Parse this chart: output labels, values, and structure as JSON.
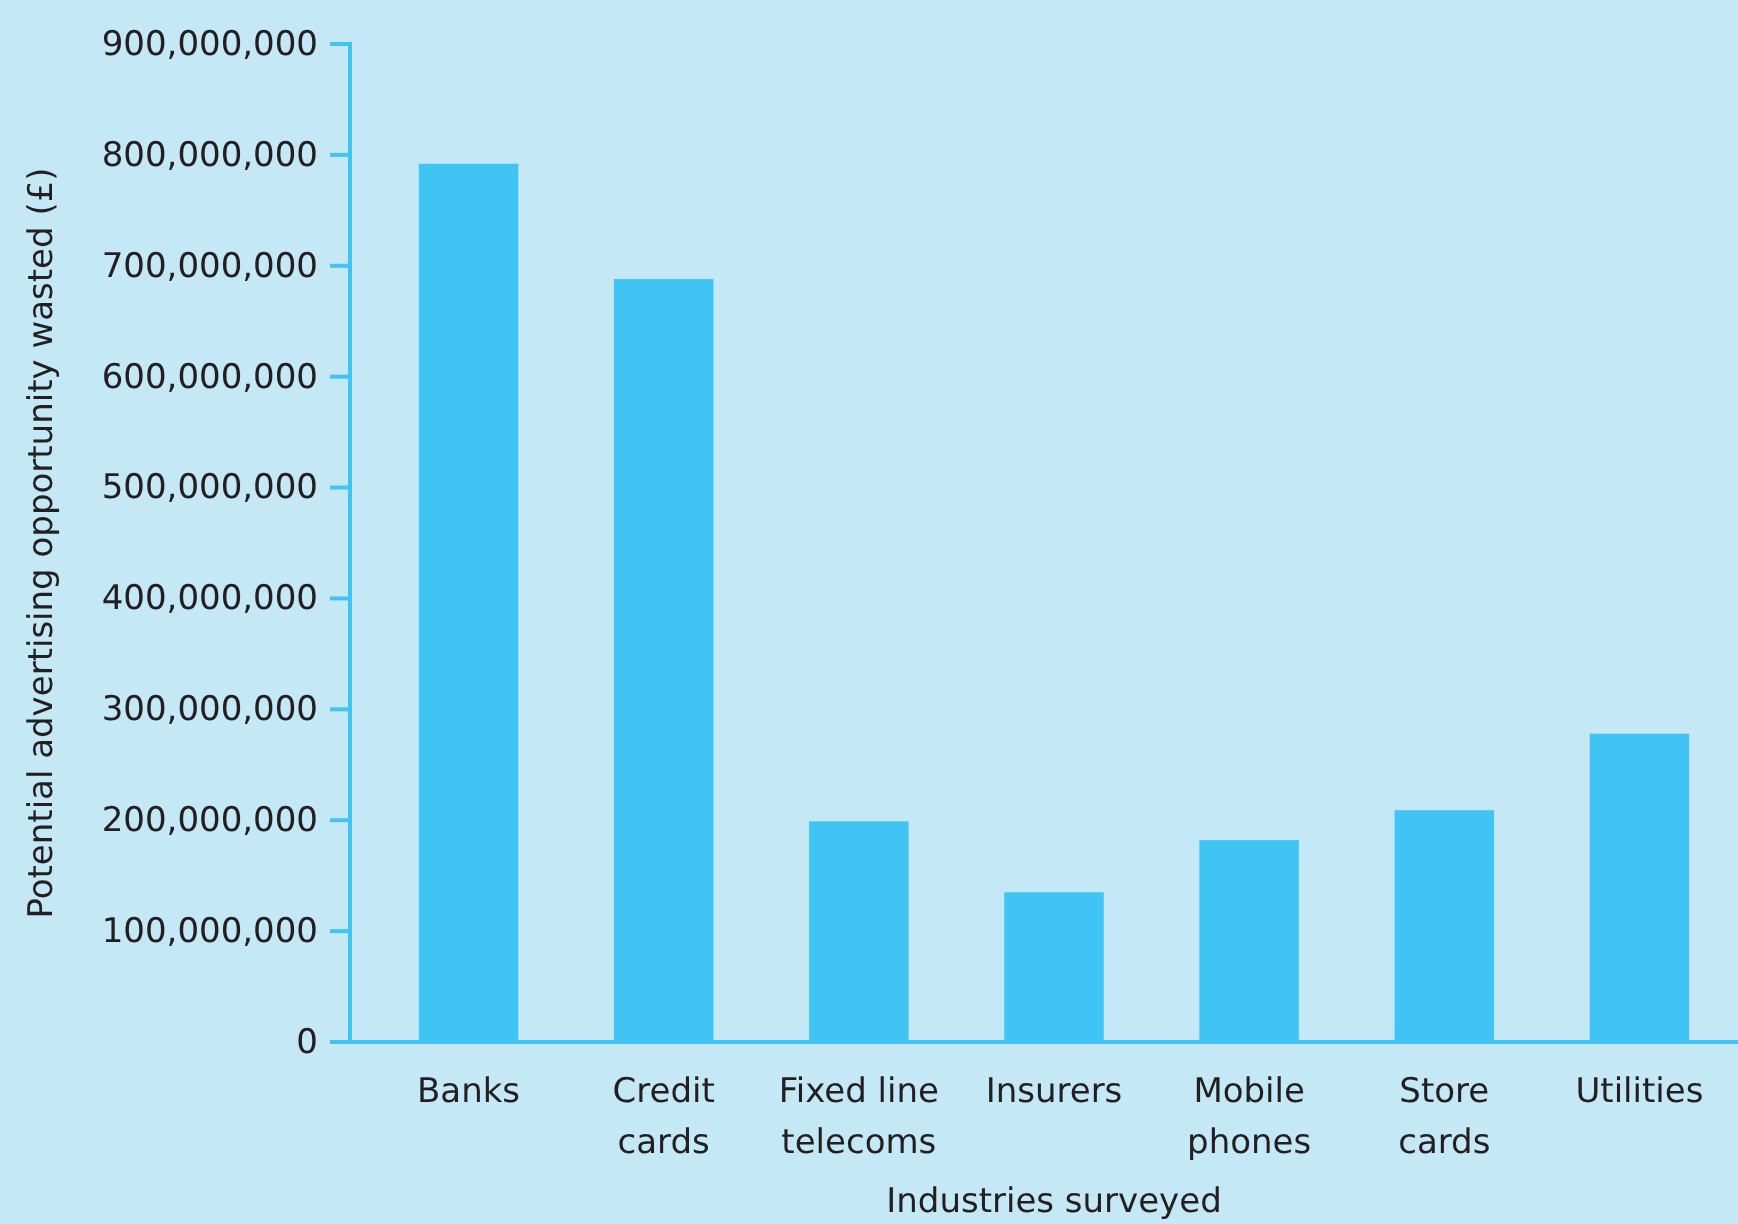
{
  "chart_data": {
    "type": "bar",
    "xlabel": "Industries surveyed",
    "ylabel": "Potential advertising opportunity wasted (£)",
    "categories": [
      "Banks",
      "Credit cards",
      "Fixed line telecoms",
      "Insurers",
      "Mobile phones",
      "Store cards",
      "Utilities"
    ],
    "values": [
      792000000,
      688000000,
      199000000,
      135000000,
      182000000,
      209000000,
      278000000
    ],
    "color": "#40c4f4",
    "ylim": [
      0,
      900000000
    ],
    "yticks": [
      {
        "value": 0,
        "label": "0"
      },
      {
        "value": 100000000,
        "label": "100,000,000"
      },
      {
        "value": 200000000,
        "label": "200,000,000"
      },
      {
        "value": 300000000,
        "label": "300,000,000"
      },
      {
        "value": 400000000,
        "label": "400,000,000"
      },
      {
        "value": 500000000,
        "label": "500,000,000"
      },
      {
        "value": 600000000,
        "label": "600,000,000"
      },
      {
        "value": 700000000,
        "label": "700,000,000"
      },
      {
        "value": 800000000,
        "label": "800,000,000"
      },
      {
        "value": 900000000,
        "label": "900,000,000"
      }
    ],
    "grid": false
  }
}
